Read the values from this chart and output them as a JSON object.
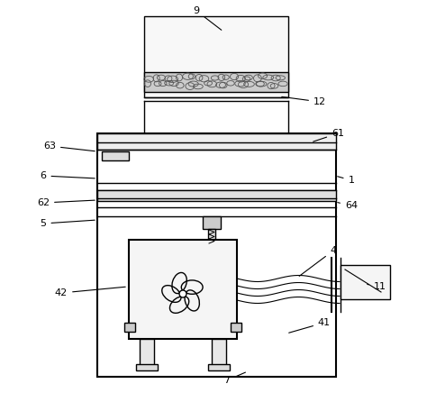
{
  "bg": "#ffffff",
  "lc": "#000000",
  "annotations": [
    [
      "9",
      218,
      12,
      248,
      35
    ],
    [
      "12",
      355,
      113,
      310,
      107
    ],
    [
      "63",
      55,
      162,
      108,
      168
    ],
    [
      "61",
      375,
      148,
      345,
      158
    ],
    [
      "6",
      48,
      195,
      108,
      198
    ],
    [
      "1",
      390,
      200,
      372,
      195
    ],
    [
      "62",
      48,
      225,
      108,
      222
    ],
    [
      "64",
      390,
      228,
      372,
      224
    ],
    [
      "5",
      48,
      248,
      108,
      244
    ],
    [
      "4",
      370,
      278,
      330,
      308
    ],
    [
      "42",
      68,
      325,
      142,
      318
    ],
    [
      "11",
      422,
      318,
      405,
      315
    ],
    [
      "41",
      360,
      358,
      318,
      370
    ],
    [
      "7",
      252,
      422,
      275,
      412
    ]
  ]
}
